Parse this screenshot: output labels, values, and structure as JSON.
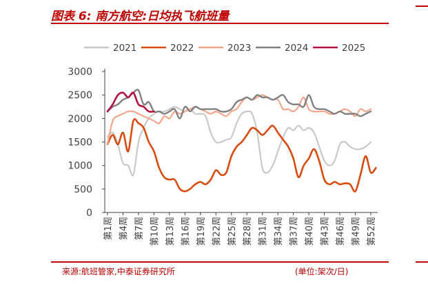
{
  "header": {
    "title": "图表 6:  南方航空:日均执飞航班量"
  },
  "footer": {
    "source": "来源:航班管家,中泰证券研究所",
    "unit": "(单位:架次/日)"
  },
  "colors": {
    "accent": "#c00000",
    "s2021": "#c8c8c8",
    "s2022": "#d94a0f",
    "s2023": "#f4a58a",
    "s2024": "#808080",
    "s2025": "#b2103c"
  },
  "chart_data": {
    "type": "line",
    "title": "",
    "xlabel": "",
    "ylabel": "",
    "ylim": [
      0,
      3000
    ],
    "yticks": [
      "0",
      "500",
      "1000",
      "1500",
      "2000",
      "2500",
      "3000"
    ],
    "x_tick_labels": [
      "第1周",
      "第4周",
      "第7周",
      "第10周",
      "第13周",
      "第16周",
      "第19周",
      "第22周",
      "第25周",
      "第28周",
      "第31周",
      "第34周",
      "第37周",
      "第40周",
      "第43周",
      "第46周",
      "第49周",
      "第52周"
    ],
    "x_tick_weeks": [
      1,
      4,
      7,
      10,
      13,
      16,
      19,
      22,
      25,
      28,
      31,
      34,
      37,
      40,
      43,
      46,
      49,
      52
    ],
    "legend_position": "top",
    "grid": false,
    "series": [
      {
        "name": "2021",
        "color": "#c8c8c8",
        "values": [
          1600,
          1700,
          1450,
          1050,
          1000,
          800,
          1500,
          1800,
          2000,
          2100,
          2150,
          2150,
          2200,
          2250,
          2200,
          2150,
          2200,
          2100,
          2100,
          2050,
          1700,
          1500,
          1500,
          1550,
          1600,
          1900,
          2100,
          2150,
          2100,
          1700,
          950,
          850,
          1000,
          1300,
          1600,
          1800,
          1750,
          1850,
          1750,
          1800,
          1700,
          1400,
          1100,
          1000,
          1100,
          1450,
          1500,
          1400,
          1350,
          1350,
          1400,
          1500
        ]
      },
      {
        "name": "2022",
        "color": "#d94a0f",
        "values": [
          1450,
          1650,
          1450,
          1700,
          1300,
          1950,
          1900,
          1800,
          1500,
          1300,
          950,
          750,
          700,
          700,
          500,
          450,
          500,
          600,
          650,
          600,
          700,
          900,
          800,
          850,
          1200,
          1400,
          1500,
          1650,
          1800,
          1750,
          1650,
          1750,
          1850,
          1700,
          1550,
          1400,
          1150,
          750,
          1000,
          1150,
          1350,
          1100,
          700,
          600,
          650,
          600,
          620,
          600,
          450,
          800,
          1200,
          850,
          950
        ]
      },
      {
        "name": "2023",
        "color": "#f4a58a",
        "values": [
          1450,
          1950,
          2050,
          2100,
          2150,
          2150,
          2100,
          2050,
          2000,
          1950,
          1900,
          2050,
          2000,
          2150,
          2100,
          2150,
          2200,
          2250,
          2200,
          2150,
          2100,
          2150,
          2100,
          2050,
          2150,
          2200,
          2350,
          2450,
          2400,
          2450,
          2500,
          2450,
          2400,
          2400,
          2200,
          2200,
          2150,
          2250,
          2450,
          2200,
          2150,
          2150,
          2150,
          2100,
          2100,
          2150,
          2200,
          2150,
          2050,
          2200,
          2150,
          2200
        ]
      },
      {
        "name": "2024",
        "color": "#808080",
        "values": [
          2150,
          2250,
          2300,
          2400,
          2450,
          2550,
          2600,
          2300,
          2350,
          2150,
          2150,
          2100,
          2150,
          2200,
          2000,
          2250,
          2150,
          2250,
          2200,
          2200,
          2200,
          2200,
          2150,
          2150,
          2200,
          2350,
          2400,
          2450,
          2400,
          2500,
          2450,
          2450,
          2400,
          2450,
          2500,
          2350,
          2300,
          2300,
          2250,
          2500,
          2250,
          2200,
          2200,
          2150,
          2100,
          2150,
          2100,
          2100,
          2100,
          2050,
          2100,
          2150
        ]
      },
      {
        "name": "2025",
        "color": "#b2103c",
        "values": [
          2150,
          2300,
          2500,
          2550,
          2450,
          2550,
          2300,
          2250,
          2150,
          2150
        ]
      }
    ]
  }
}
